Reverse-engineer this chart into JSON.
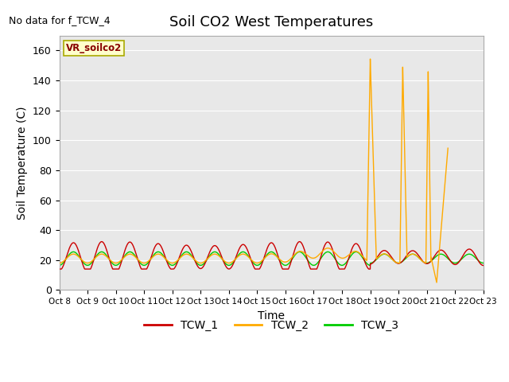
{
  "title": "Soil CO2 West Temperatures",
  "xlabel": "Time",
  "ylabel": "Soil Temperature (C)",
  "no_data_text": "No data for f_TCW_4",
  "legend_label": "VR_soilco2",
  "ylim": [
    0,
    170
  ],
  "yticks": [
    0,
    20,
    40,
    60,
    80,
    100,
    120,
    140,
    160
  ],
  "xtick_labels": [
    "Oct 8",
    "Oct 9",
    "Oct 10",
    "Oct 11",
    "Oct 12",
    "Oct 13",
    "Oct 14",
    "Oct 15",
    "Oct 16",
    "Oct 17",
    "Oct 18",
    "Oct 19",
    "Oct 20",
    "Oct 21",
    "Oct 22",
    "Oct 23"
  ],
  "bg_color": "#e8e8e8",
  "tcw1_color": "#cc0000",
  "tcw2_color": "#ffaa00",
  "tcw3_color": "#00cc00",
  "legend_box_facecolor": "#ffffcc",
  "legend_box_edgecolor": "#aaaa00",
  "fig_width": 6.4,
  "fig_height": 4.8,
  "dpi": 100
}
